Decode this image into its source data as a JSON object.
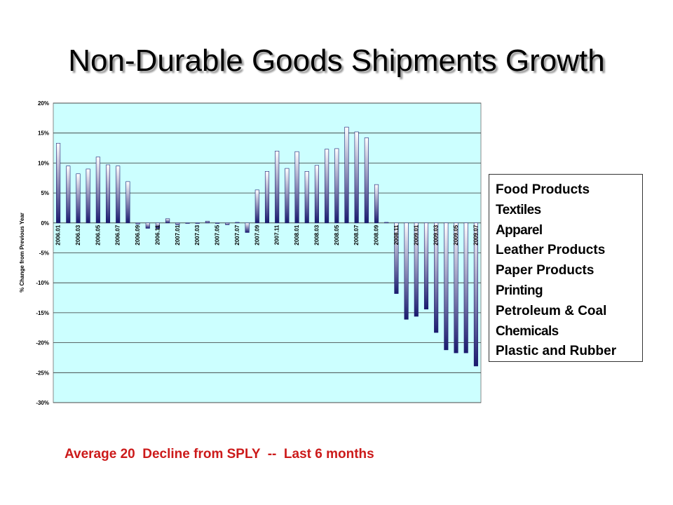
{
  "title": "Non-Durable Goods Shipments Growth",
  "legend_panel": {
    "items": [
      "Food Products",
      "Textiles",
      "Apparel",
      "Leather Products",
      "Paper Products",
      "Printing",
      "Petroleum & Coal",
      "Chemicals",
      "Plastic and Rubber"
    ]
  },
  "footnote": "Average 20  Decline from SPLY  --  Last 6 months",
  "colors": {
    "plot_background": "#ccffff",
    "bar_top": "#ffffff",
    "bar_bottom": "#1a1a6e",
    "footnote": "#cc1a1a"
  },
  "chart_data": {
    "type": "bar",
    "title": "",
    "xlabel": "",
    "ylabel": "% Change from Previous Year",
    "ylim": [
      -30,
      20
    ],
    "yticks": [
      20,
      15,
      10,
      5,
      0,
      -5,
      -10,
      -15,
      -20,
      -25,
      -30
    ],
    "ytick_labels": [
      "20%",
      "15%",
      "10%",
      "5%",
      "0%",
      "-5%",
      "-10%",
      "-15%",
      "-20%",
      "-25%",
      "-30%"
    ],
    "grid": true,
    "legend": "none",
    "categories": [
      "2006.01",
      "2006.02",
      "2006.03",
      "2006.04",
      "2006.05",
      "2006.06",
      "2006.07",
      "2006.08",
      "2006.09",
      "2006.10",
      "2006.11",
      "2006.12",
      "2007.01",
      "2007.02",
      "2007.03",
      "2007.04",
      "2007.05",
      "2007.06",
      "2007.07",
      "2007.08",
      "2007.09",
      "2007.10",
      "2007.11",
      "2007.12",
      "2008.01",
      "2008.02",
      "2008.03",
      "2008.04",
      "2008.05",
      "2008.06",
      "2008.07",
      "2008.08",
      "2008.09",
      "2008.10",
      "2008.11",
      "2008.12",
      "2009.01",
      "2009.02",
      "2009.03",
      "2009.04",
      "2009.05",
      "2009.06",
      "2009.07"
    ],
    "tick_labels": [
      "2006.01",
      "",
      "2006.03",
      "",
      "2006.05",
      "",
      "2006.07",
      "",
      "2006.09",
      "",
      "2006.11",
      "",
      "2007.01",
      "",
      "2007.03",
      "",
      "2007.05",
      "",
      "2007.07",
      "",
      "2007.09",
      "",
      "2007.11",
      "",
      "2008.01",
      "",
      "2008.03",
      "",
      "2008.05",
      "",
      "2008.07",
      "",
      "2008.09",
      "",
      "2008.11",
      "",
      "2009.01",
      "",
      "2009.03",
      "",
      "2009.05",
      "",
      "2009.07"
    ],
    "values": [
      13.3,
      9.5,
      8.2,
      9.0,
      11.0,
      9.7,
      9.5,
      6.9,
      -0.2,
      -0.9,
      -0.9,
      0.7,
      -0.3,
      -0.1,
      -0.1,
      0.3,
      -0.1,
      -0.3,
      0.1,
      -1.6,
      5.5,
      8.6,
      12.0,
      9.1,
      11.9,
      8.6,
      9.6,
      12.3,
      12.4,
      16.0,
      15.2,
      14.2,
      6.4,
      0.1,
      -11.8,
      -16.1,
      -15.6,
      -14.4,
      -18.3,
      -21.2,
      -21.7,
      -21.7,
      -23.9
    ]
  }
}
